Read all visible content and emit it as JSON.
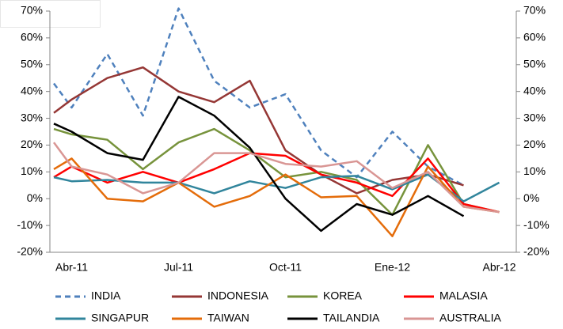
{
  "chart_data": {
    "type": "line",
    "categories": [
      null,
      "Abr-11",
      null,
      null,
      null,
      null,
      null,
      "Jul-11",
      null,
      null,
      null,
      null,
      null,
      "Oct-11",
      null,
      null,
      null,
      null,
      null,
      "Ene-12",
      null,
      null,
      null,
      null,
      null,
      "Abr-12"
    ],
    "connect_gaps": true,
    "ylim": [
      -20,
      70
    ],
    "yticks": [
      {
        "value": -20,
        "label": "-20%"
      },
      {
        "value": -10,
        "label": "-10%"
      },
      {
        "value": 0,
        "label": "0%"
      },
      {
        "value": 10,
        "label": "10%"
      },
      {
        "value": 20,
        "label": "20%"
      },
      {
        "value": 30,
        "label": "30%"
      },
      {
        "value": 40,
        "label": "40%"
      },
      {
        "value": 50,
        "label": "50%"
      },
      {
        "value": 60,
        "label": "60%"
      },
      {
        "value": 70,
        "label": "70%"
      }
    ],
    "y2lim": [
      -20,
      70
    ],
    "y2ticks": [
      {
        "value": -20,
        "label": "-20%"
      },
      {
        "value": -10,
        "label": "-10%"
      },
      {
        "value": 0,
        "label": "0%"
      },
      {
        "value": 10,
        "label": "10%"
      },
      {
        "value": 20,
        "label": "20%"
      },
      {
        "value": 30,
        "label": "30%"
      },
      {
        "value": 40,
        "label": "40%"
      },
      {
        "value": 50,
        "label": "50%"
      },
      {
        "value": 60,
        "label": "60%"
      },
      {
        "value": 70,
        "label": "70%"
      }
    ],
    "grid": false,
    "legend": "bottom",
    "series": [
      {
        "name": "INDIA",
        "color": "#4f81bd",
        "dashed": true,
        "values": [
          43,
          34,
          null,
          54,
          null,
          31,
          null,
          71,
          null,
          44,
          null,
          34,
          null,
          39,
          null,
          18,
          null,
          8,
          null,
          25,
          null,
          12,
          null,
          5,
          null,
          null
        ]
      },
      {
        "name": "INDONESIA",
        "color": "#953735",
        "values": [
          32,
          37,
          null,
          45,
          null,
          49,
          null,
          40,
          null,
          36,
          null,
          44,
          null,
          18,
          null,
          9,
          null,
          2,
          null,
          7,
          null,
          9,
          null,
          5,
          null,
          null
        ]
      },
      {
        "name": "KOREA",
        "color": "#77933c",
        "values": [
          26,
          24,
          null,
          22,
          null,
          11,
          null,
          21,
          null,
          26,
          null,
          18,
          null,
          8,
          null,
          10,
          null,
          7,
          null,
          -6,
          null,
          20,
          null,
          -2,
          null,
          -5
        ]
      },
      {
        "name": "MALASIA",
        "color": "#ff0000",
        "values": [
          8,
          12,
          null,
          6,
          null,
          10,
          null,
          6,
          null,
          11,
          null,
          17,
          null,
          16,
          null,
          9,
          null,
          6,
          null,
          1,
          null,
          15,
          null,
          -2,
          null,
          -5
        ]
      },
      {
        "name": "SINGAPUR",
        "color": "#31859c",
        "values": [
          8,
          6.5,
          null,
          7,
          null,
          6,
          null,
          6,
          null,
          2,
          null,
          6.5,
          null,
          4,
          null,
          8,
          null,
          8.5,
          null,
          3.5,
          null,
          9,
          null,
          -1,
          null,
          6
        ]
      },
      {
        "name": "TAIWAN",
        "color": "#e46c0a",
        "values": [
          11,
          15,
          null,
          0,
          null,
          -1,
          null,
          6,
          null,
          -3,
          null,
          1,
          null,
          9,
          null,
          0.5,
          null,
          1,
          null,
          -14,
          null,
          12,
          null,
          -3,
          null,
          -5
        ]
      },
      {
        "name": "TAILANDIA",
        "color": "#000000",
        "values": [
          28,
          25,
          null,
          17,
          null,
          14.5,
          null,
          38,
          null,
          31,
          null,
          19,
          null,
          0,
          null,
          -12,
          null,
          -2,
          null,
          -6,
          null,
          1,
          null,
          -6.5,
          null,
          null
        ]
      },
      {
        "name": "AUSTRALIA",
        "color": "#d99694",
        "values": [
          21,
          12,
          null,
          9,
          null,
          2,
          null,
          6,
          null,
          17,
          null,
          17,
          null,
          13,
          null,
          12,
          null,
          14,
          null,
          4,
          null,
          10,
          null,
          -3,
          null,
          -5
        ]
      }
    ]
  }
}
